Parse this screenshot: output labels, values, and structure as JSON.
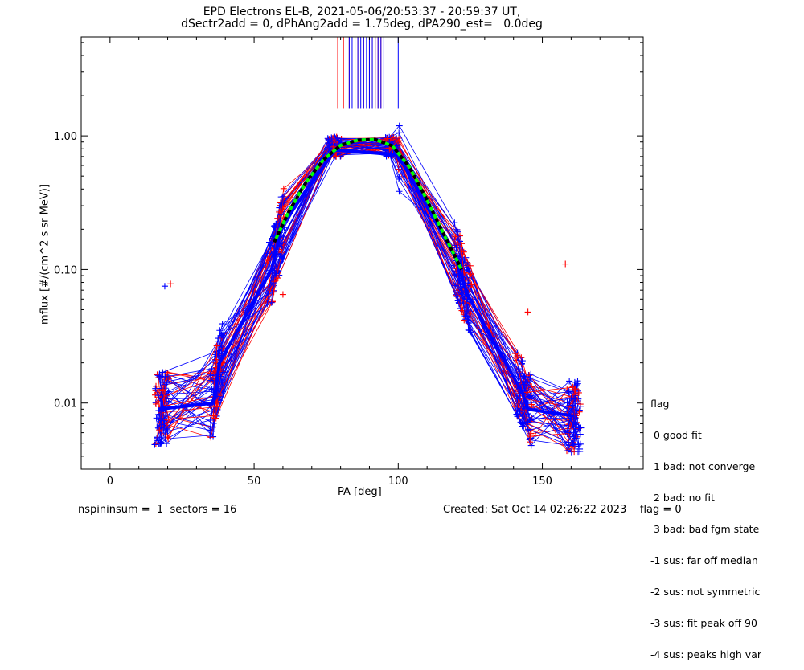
{
  "title_line1": "EPD Electrons EL-B, 2021-05-06/20:53:37 - 20:59:37 UT,",
  "title_line2": "dSectr2add = 0, dPhAng2add = 1.75deg, dPA290_est=   0.0deg",
  "footer": {
    "left": "nspininsum =  1  sectors = 16",
    "right": "Created: Sat Oct 14 02:26:22 2023    flag = 0"
  },
  "flag_legend": [
    "flag",
    " 0 good fit",
    " 1 bad: not converge",
    " 2 bad: no fit",
    " 3 bad: bad fgm state",
    "-1 sus: far off median",
    "-2 sus: not symmetric",
    "-3 sus: fit peak off 90",
    "-4 sus: peaks high var"
  ],
  "colors": {
    "red": "#ff0000",
    "blue": "#0000ff",
    "fit_green": "#00ff00",
    "fit_black": "#000000"
  },
  "chart_data": {
    "type": "scatter",
    "title": "EPD Electrons EL-B, 2021-05-06/20:53:37 - 20:59:37 UT,",
    "xlabel": "PA [deg]",
    "ylabel": "mflux [#/(cm^2 s sr MeV)]",
    "xlim": [
      -10,
      185
    ],
    "ylim": [
      0.0032,
      5.5
    ],
    "yscale": "log",
    "xticks": [
      0,
      50,
      100,
      150
    ],
    "xtick_labels": [
      "0",
      "50",
      "100",
      "150"
    ],
    "yticks": [
      0.01,
      0.1,
      1.0
    ],
    "ytick_labels": [
      "0.01",
      "0.10",
      "1.00"
    ],
    "grid": false,
    "median_profile": {
      "pa": [
        17,
        36,
        38,
        56,
        60,
        78,
        90,
        100,
        120,
        124,
        143,
        145,
        161
      ],
      "flux": [
        0.009,
        0.01,
        0.02,
        0.1,
        0.22,
        0.78,
        0.75,
        0.72,
        0.12,
        0.065,
        0.012,
        0.009,
        0.008
      ]
    },
    "fit_curve": {
      "pa": [
        57,
        62,
        68,
        74,
        80,
        86,
        92,
        98,
        104,
        110,
        116,
        122
      ],
      "flux": [
        0.16,
        0.27,
        0.45,
        0.66,
        0.85,
        0.93,
        0.94,
        0.84,
        0.58,
        0.33,
        0.18,
        0.1
      ]
    },
    "vertical_lines": {
      "red_pa": [
        79,
        81,
        83,
        86,
        88,
        90,
        91,
        92,
        93,
        94
      ],
      "blue_pa": [
        83,
        84,
        85,
        86,
        87,
        88,
        89,
        90,
        91,
        92,
        93,
        94,
        95,
        100
      ],
      "from_flux": 1.35,
      "to_flux": 5.5
    },
    "outlier_points": {
      "red": [
        [
          21,
          0.078
        ],
        [
          60,
          0.065
        ],
        [
          158,
          0.11
        ],
        [
          145,
          0.048
        ]
      ],
      "blue": [
        [
          19,
          0.075
        ]
      ]
    }
  }
}
